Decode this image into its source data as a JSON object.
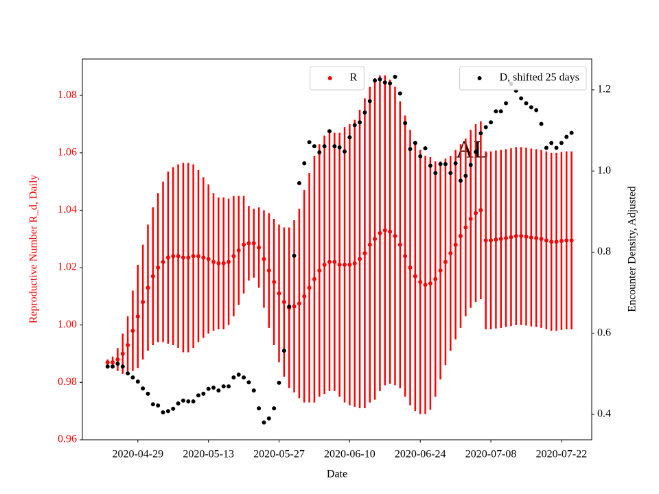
{
  "chart_data": {
    "type": "scatter",
    "x_label": "Date",
    "y_label": "Reproductive Number R_d, Daily",
    "y2_label": "Encounter Density, Adjusted",
    "y_color": "#ff0000",
    "annotation": "AL",
    "x": [
      "2020-04-23",
      "2020-04-24",
      "2020-04-25",
      "2020-04-26",
      "2020-04-27",
      "2020-04-28",
      "2020-04-29",
      "2020-04-30",
      "2020-05-01",
      "2020-05-02",
      "2020-05-03",
      "2020-05-04",
      "2020-05-05",
      "2020-05-06",
      "2020-05-07",
      "2020-05-08",
      "2020-05-09",
      "2020-05-10",
      "2020-05-11",
      "2020-05-12",
      "2020-05-13",
      "2020-05-14",
      "2020-05-15",
      "2020-05-16",
      "2020-05-17",
      "2020-05-18",
      "2020-05-19",
      "2020-05-20",
      "2020-05-21",
      "2020-05-22",
      "2020-05-23",
      "2020-05-24",
      "2020-05-25",
      "2020-05-26",
      "2020-05-27",
      "2020-05-28",
      "2020-05-29",
      "2020-05-30",
      "2020-05-31",
      "2020-06-01",
      "2020-06-02",
      "2020-06-03",
      "2020-06-04",
      "2020-06-05",
      "2020-06-06",
      "2020-06-07",
      "2020-06-08",
      "2020-06-09",
      "2020-06-10",
      "2020-06-11",
      "2020-06-12",
      "2020-06-13",
      "2020-06-14",
      "2020-06-15",
      "2020-06-16",
      "2020-06-17",
      "2020-06-18",
      "2020-06-19",
      "2020-06-20",
      "2020-06-21",
      "2020-06-22",
      "2020-06-23",
      "2020-06-24",
      "2020-06-25",
      "2020-06-26",
      "2020-06-27",
      "2020-06-28",
      "2020-06-29",
      "2020-06-30",
      "2020-07-01",
      "2020-07-02",
      "2020-07-03",
      "2020-07-04",
      "2020-07-05",
      "2020-07-06",
      "2020-07-07",
      "2020-07-08",
      "2020-07-09",
      "2020-07-10",
      "2020-07-11",
      "2020-07-12",
      "2020-07-13",
      "2020-07-14",
      "2020-07-15",
      "2020-07-16",
      "2020-07-17",
      "2020-07-18",
      "2020-07-19",
      "2020-07-20",
      "2020-07-21",
      "2020-07-22",
      "2020-07-23",
      "2020-07-24"
    ],
    "xlim": [
      "2020-04-18",
      "2020-07-28"
    ],
    "xticks": [
      "2020-04-29",
      "2020-05-13",
      "2020-05-27",
      "2020-06-10",
      "2020-06-24",
      "2020-07-08",
      "2020-07-22"
    ],
    "ylim": [
      0.96,
      1.0927
    ],
    "yticks": [
      0.96,
      0.98,
      {
        "value": 1,
        "label": "1.00"
      },
      1.02,
      1.04,
      1.06,
      1.08
    ],
    "y2lim": [
      0.3374,
      1.276
    ],
    "y2ticks": [
      0.4,
      0.6,
      0.8,
      {
        "value": 1,
        "label": "1.0"
      },
      1.2
    ],
    "series": [
      {
        "name": "R",
        "color": "#ff0000",
        "legend": "upper center",
        "values": [
          0.987,
          0.987,
          0.988,
          0.99,
          0.993,
          0.998,
          1.003,
          1.008,
          1.013,
          1.017,
          1.02,
          1.022,
          1.0235,
          1.024,
          1.024,
          1.0235,
          1.0235,
          1.024,
          1.024,
          1.0235,
          1.023,
          1.022,
          1.0215,
          1.0215,
          1.022,
          1.024,
          1.026,
          1.028,
          1.0285,
          1.0285,
          1.027,
          1.023,
          1.019,
          1.015,
          1.011,
          1.008,
          1.006,
          1.0065,
          1.0075,
          1.01,
          1.013,
          1.016,
          1.019,
          1.021,
          1.022,
          1.022,
          1.021,
          1.021,
          1.021,
          1.0215,
          1.023,
          1.025,
          1.028,
          1.03,
          1.032,
          1.033,
          1.0325,
          1.031,
          1.028,
          1.024,
          1.02,
          1.017,
          1.015,
          1.014,
          1.0145,
          1.016,
          1.019,
          1.022,
          1.025,
          1.028,
          1.031,
          1.034,
          1.037,
          1.039,
          1.04,
          1.0295,
          1.0295,
          1.0298,
          1.03,
          1.0303,
          1.0306,
          1.031,
          1.031,
          1.0308,
          1.0305,
          1.0303,
          1.03,
          1.0295,
          1.029,
          1.029,
          1.0293,
          1.0295,
          1.0295
        ],
        "errors": [
          0.001,
          0.002,
          0.004,
          0.007,
          0.01,
          0.014,
          0.018,
          0.02,
          0.022,
          0.024,
          0.026,
          0.028,
          0.03,
          0.031,
          0.032,
          0.033,
          0.033,
          0.032,
          0.03,
          0.028,
          0.026,
          0.024,
          0.023,
          0.023,
          0.022,
          0.021,
          0.019,
          0.017,
          0.013,
          0.012,
          0.014,
          0.017,
          0.02,
          0.022,
          0.024,
          0.026,
          0.028,
          0.03,
          0.033,
          0.037,
          0.04,
          0.043,
          0.044,
          0.045,
          0.045,
          0.045,
          0.046,
          0.048,
          0.049,
          0.05,
          0.052,
          0.054,
          0.055,
          0.056,
          0.055,
          0.054,
          0.053,
          0.052,
          0.05,
          0.049,
          0.048,
          0.047,
          0.046,
          0.045,
          0.044,
          0.041,
          0.038,
          0.036,
          0.034,
          0.033,
          0.032,
          0.031,
          0.031,
          0.031,
          0.031,
          0.031,
          0.031,
          0.031,
          0.031,
          0.031,
          0.031,
          0.031,
          0.031,
          0.031,
          0.031,
          0.031,
          0.031,
          0.031,
          0.031,
          0.031,
          0.031,
          0.031,
          0.031
        ]
      },
      {
        "name": "D, shifted 25 days",
        "color": "#000000",
        "axis": "y2",
        "legend": "upper right",
        "values": [
          0.518,
          0.518,
          0.525,
          0.518,
          0.501,
          0.491,
          0.481,
          0.464,
          0.451,
          0.425,
          0.422,
          0.405,
          0.408,
          0.414,
          0.427,
          0.434,
          0.432,
          0.432,
          0.447,
          0.451,
          0.463,
          0.466,
          0.459,
          0.469,
          0.469,
          0.491,
          0.498,
          0.491,
          0.479,
          0.459,
          0.415,
          0.38,
          0.39,
          0.415,
          0.478,
          0.557,
          0.666,
          0.791,
          0.97,
          1.019,
          1.071,
          1.061,
          1.046,
          1.061,
          1.098,
          1.061,
          1.058,
          1.048,
          1.083,
          1.113,
          1.12,
          1.144,
          1.172,
          1.223,
          1.226,
          1.218,
          1.216,
          1.232,
          1.191,
          1.118,
          1.054,
          1.069,
          1.036,
          1.056,
          1.013,
          0.995,
          1.017,
          1.017,
          0.995,
          1.019,
          0.976,
          0.988,
          1.015,
          1.047,
          1.093,
          1.108,
          1.12,
          1.147,
          1.147,
          1.167,
          1.215,
          1.198,
          1.179,
          1.167,
          1.157,
          1.15,
          1.116,
          1.057,
          1.069,
          1.057,
          1.069,
          1.084,
          1.094
        ]
      }
    ]
  }
}
